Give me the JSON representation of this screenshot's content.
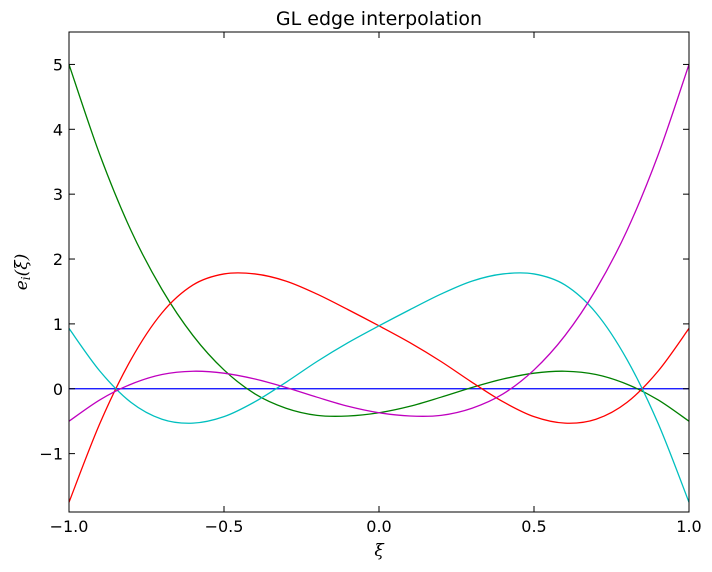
{
  "chart_data": {
    "type": "line",
    "title": "GL edge interpolation",
    "xlabel": "ξ",
    "ylabel": {
      "base": "e",
      "sub": "i",
      "arg": "(ξ)"
    },
    "xlim": [
      -1.0,
      1.0
    ],
    "ylim": [
      -1.9,
      5.5
    ],
    "xticks": [
      -1.0,
      -0.5,
      0.0,
      0.5,
      1.0
    ],
    "xtick_labels": [
      "−1.0",
      "−0.5",
      "0.0",
      "0.5",
      "1.0"
    ],
    "yticks": [
      -1,
      0,
      1,
      2,
      3,
      4,
      5
    ],
    "ytick_labels": [
      "−1",
      "0",
      "1",
      "2",
      "3",
      "4",
      "5"
    ],
    "grid": false,
    "legend": "none",
    "series": [
      {
        "color": "#0000ff",
        "x": [
          -1.0,
          1.0
        ],
        "y": [
          0.0,
          0.0
        ]
      },
      {
        "color": "#008000",
        "x": [
          -1.0,
          -0.9,
          -0.8,
          -0.7,
          -0.6,
          -0.5,
          -0.4,
          -0.3,
          -0.2,
          -0.1,
          0.0,
          0.1,
          0.2,
          0.3,
          0.4,
          0.5,
          0.6,
          0.7,
          0.8,
          0.9,
          1.0
        ],
        "y": [
          5.0,
          3.6,
          2.44,
          1.53,
          0.82,
          0.29,
          -0.08,
          -0.3,
          -0.41,
          -0.42,
          -0.37,
          -0.27,
          -0.13,
          0.02,
          0.15,
          0.24,
          0.27,
          0.22,
          0.07,
          -0.17,
          -0.5
        ]
      },
      {
        "color": "#ff0000",
        "x": [
          -1.0,
          -0.9,
          -0.8,
          -0.7,
          -0.6,
          -0.5,
          -0.4,
          -0.3,
          -0.2,
          -0.1,
          0.0,
          0.1,
          0.2,
          0.3,
          0.4,
          0.5,
          0.6,
          0.7,
          0.8,
          0.9,
          1.0
        ],
        "y": [
          -1.75,
          -0.53,
          0.45,
          1.17,
          1.6,
          1.77,
          1.77,
          1.66,
          1.46,
          1.22,
          0.97,
          0.71,
          0.42,
          0.1,
          -0.2,
          -0.43,
          -0.53,
          -0.47,
          -0.21,
          0.27,
          0.93
        ]
      },
      {
        "color": "#00bfbf",
        "x": [
          -1.0,
          -0.9,
          -0.8,
          -0.7,
          -0.6,
          -0.5,
          -0.4,
          -0.3,
          -0.2,
          -0.1,
          0.0,
          0.1,
          0.2,
          0.3,
          0.4,
          0.5,
          0.6,
          0.7,
          0.8,
          0.9,
          1.0
        ],
        "y": [
          0.93,
          0.27,
          -0.21,
          -0.47,
          -0.53,
          -0.43,
          -0.2,
          0.1,
          0.42,
          0.71,
          0.97,
          1.22,
          1.46,
          1.66,
          1.77,
          1.77,
          1.6,
          1.17,
          0.45,
          -0.53,
          -1.75
        ]
      },
      {
        "color": "#bf00bf",
        "x": [
          -1.0,
          -0.9,
          -0.8,
          -0.7,
          -0.6,
          -0.5,
          -0.4,
          -0.3,
          -0.2,
          -0.1,
          0.0,
          0.1,
          0.2,
          0.3,
          0.4,
          0.5,
          0.6,
          0.7,
          0.8,
          0.9,
          1.0
        ],
        "y": [
          -0.5,
          -0.17,
          0.07,
          0.22,
          0.27,
          0.24,
          0.15,
          0.02,
          -0.13,
          -0.27,
          -0.37,
          -0.42,
          -0.41,
          -0.3,
          -0.08,
          0.29,
          0.82,
          1.53,
          2.44,
          3.6,
          5.0
        ]
      }
    ]
  }
}
